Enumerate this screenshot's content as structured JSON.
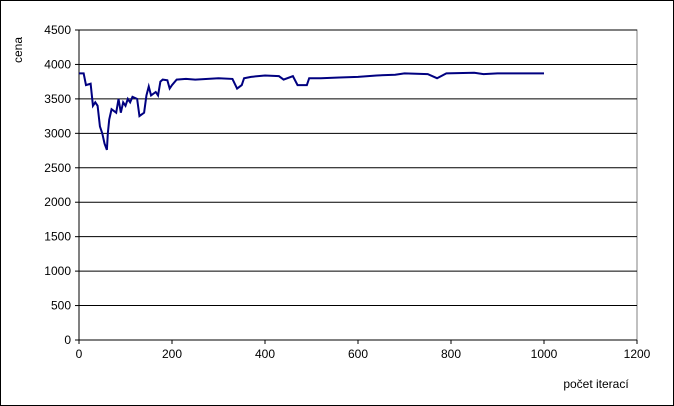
{
  "chart_data": {
    "type": "line",
    "x_label": "počet iterací",
    "y_label": "cena",
    "x": [
      0,
      10,
      15,
      25,
      30,
      35,
      40,
      45,
      50,
      55,
      60,
      62,
      65,
      70,
      80,
      85,
      90,
      95,
      100,
      105,
      110,
      115,
      125,
      130,
      140,
      145,
      150,
      155,
      165,
      170,
      175,
      180,
      190,
      195,
      200,
      210,
      230,
      250,
      300,
      330,
      340,
      350,
      355,
      370,
      400,
      430,
      440,
      460,
      470,
      490,
      495,
      520,
      560,
      600,
      640,
      680,
      700,
      750,
      770,
      790,
      850,
      870,
      900,
      1000
    ],
    "series": [
      {
        "color": "#000080",
        "values": [
          3870,
          3870,
          3700,
          3720,
          3400,
          3450,
          3400,
          3100,
          3000,
          2850,
          2760,
          3000,
          3200,
          3350,
          3300,
          3500,
          3300,
          3450,
          3400,
          3500,
          3450,
          3530,
          3500,
          3250,
          3300,
          3550,
          3680,
          3550,
          3600,
          3550,
          3750,
          3780,
          3770,
          3650,
          3700,
          3780,
          3790,
          3780,
          3800,
          3790,
          3650,
          3700,
          3800,
          3820,
          3840,
          3830,
          3780,
          3830,
          3700,
          3700,
          3800,
          3800,
          3810,
          3820,
          3840,
          3850,
          3870,
          3860,
          3800,
          3870,
          3880,
          3860,
          3870,
          3870
        ]
      }
    ],
    "xlim": [
      0,
      1200
    ],
    "xticks": [
      0,
      200,
      400,
      600,
      800,
      1000,
      1200
    ],
    "ylim": [
      0,
      4500
    ],
    "yticks": [
      0,
      500,
      1000,
      1500,
      2000,
      2500,
      3000,
      3500,
      4000,
      4500
    ],
    "grid": true
  }
}
